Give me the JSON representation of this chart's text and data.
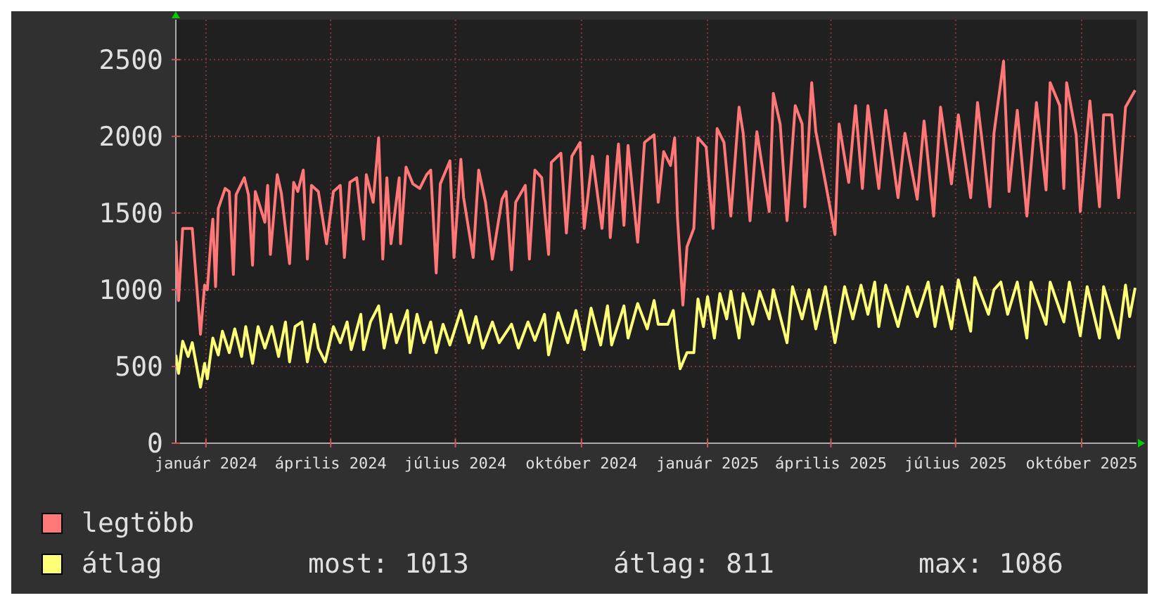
{
  "chart_data": {
    "type": "line",
    "xlim": [
      "2023-12-10",
      "2025-11-10"
    ],
    "xticks": [
      {
        "value": "2024-01-01",
        "label": "január 2024"
      },
      {
        "value": "2024-04-01",
        "label": "április 2024"
      },
      {
        "value": "2024-07-01",
        "label": "július 2024"
      },
      {
        "value": "2024-10-01",
        "label": "október 2024"
      },
      {
        "value": "2025-01-01",
        "label": "január 2025"
      },
      {
        "value": "2025-04-01",
        "label": "április 2025"
      },
      {
        "value": "2025-07-01",
        "label": "július 2025"
      },
      {
        "value": "2025-10-01",
        "label": "október 2025"
      }
    ],
    "ylim": [
      0,
      2760
    ],
    "yticks": [
      0,
      500,
      1000,
      1500,
      2000,
      2500
    ],
    "grid": true,
    "legend": "bottom",
    "series": [
      {
        "name": "legtöbb",
        "color": "#ff7777",
        "x": [
          "2023-12-10",
          "2023-12-12",
          "2023-12-15",
          "2023-12-22",
          "2023-12-28",
          "2023-12-31",
          "2024-01-02",
          "2024-01-05",
          "2024-01-06",
          "2024-01-08",
          "2024-01-10",
          "2024-01-15",
          "2024-01-18",
          "2024-01-21",
          "2024-01-23",
          "2024-01-29",
          "2024-02-01",
          "2024-02-04",
          "2024-02-06",
          "2024-02-13",
          "2024-02-15",
          "2024-02-17",
          "2024-02-22",
          "2024-02-25",
          "2024-03-02",
          "2024-03-05",
          "2024-03-08",
          "2024-03-12",
          "2024-03-15",
          "2024-03-18",
          "2024-03-23",
          "2024-03-29",
          "2024-04-03",
          "2024-04-08",
          "2024-04-11",
          "2024-04-15",
          "2024-04-20",
          "2024-04-25",
          "2024-04-27",
          "2024-05-02",
          "2024-05-06",
          "2024-05-09",
          "2024-05-12",
          "2024-05-15",
          "2024-05-21",
          "2024-05-22",
          "2024-05-26",
          "2024-05-31",
          "2024-06-05",
          "2024-06-10",
          "2024-06-13",
          "2024-06-17",
          "2024-06-20",
          "2024-06-27",
          "2024-06-30",
          "2024-07-05",
          "2024-07-07",
          "2024-07-14",
          "2024-07-18",
          "2024-07-23",
          "2024-07-28",
          "2024-08-04",
          "2024-08-07",
          "2024-08-11",
          "2024-08-14",
          "2024-08-21",
          "2024-08-24",
          "2024-08-28",
          "2024-09-02",
          "2024-09-07",
          "2024-09-09",
          "2024-09-16",
          "2024-09-20",
          "2024-09-24",
          "2024-09-30",
          "2024-10-03",
          "2024-10-09",
          "2024-10-16",
          "2024-10-20",
          "2024-10-22",
          "2024-10-28",
          "2024-11-01",
          "2024-11-04",
          "2024-11-11",
          "2024-11-16",
          "2024-11-23",
          "2024-11-26",
          "2024-11-30",
          "2024-12-05",
          "2024-12-08",
          "2024-12-10",
          "2024-12-14",
          "2024-12-17",
          "2024-12-22",
          "2024-12-25",
          "2024-12-31",
          "2025-01-05",
          "2025-01-08",
          "2025-01-13",
          "2025-01-18",
          "2025-01-24",
          "2025-01-27",
          "2025-02-01",
          "2025-02-06",
          "2025-02-15",
          "2025-02-18",
          "2025-02-23",
          "2025-02-28",
          "2025-03-06",
          "2025-03-11",
          "2025-03-13",
          "2025-03-18",
          "2025-03-21",
          "2025-03-28",
          "2025-04-04",
          "2025-04-07",
          "2025-04-14",
          "2025-04-19",
          "2025-04-24",
          "2025-04-28",
          "2025-05-06",
          "2025-05-11",
          "2025-05-20",
          "2025-05-25",
          "2025-06-03",
          "2025-06-08",
          "2025-06-15",
          "2025-06-20",
          "2025-06-28",
          "2025-07-03",
          "2025-07-12",
          "2025-07-17",
          "2025-07-26",
          "2025-07-29",
          "2025-08-05",
          "2025-08-09",
          "2025-08-15",
          "2025-08-22",
          "2025-08-29",
          "2025-09-05",
          "2025-09-08",
          "2025-09-15",
          "2025-09-18",
          "2025-09-20",
          "2025-09-27",
          "2025-09-30",
          "2025-10-07",
          "2025-10-14",
          "2025-10-17",
          "2025-10-23",
          "2025-10-28",
          "2025-11-02",
          "2025-11-09"
        ],
        "values": [
          1320,
          930,
          1400,
          1400,
          710,
          1030,
          1000,
          1370,
          1460,
          1020,
          1530,
          1660,
          1640,
          1100,
          1620,
          1730,
          1620,
          1160,
          1640,
          1440,
          1680,
          1230,
          1750,
          1630,
          1170,
          1700,
          1640,
          1780,
          1200,
          1680,
          1640,
          1300,
          1640,
          1680,
          1210,
          1700,
          1730,
          1330,
          1750,
          1570,
          1990,
          1200,
          1730,
          1300,
          1730,
          1300,
          1800,
          1690,
          1660,
          1750,
          1780,
          1110,
          1690,
          1840,
          1210,
          1850,
          1600,
          1210,
          1780,
          1570,
          1200,
          1590,
          1640,
          1130,
          1570,
          1680,
          1200,
          1780,
          1730,
          1230,
          1830,
          1890,
          1370,
          1870,
          1960,
          1400,
          1870,
          1400,
          1870,
          1340,
          1950,
          1420,
          1940,
          1310,
          1960,
          2010,
          1570,
          1900,
          1810,
          1990,
          1480,
          900,
          1280,
          1400,
          1990,
          1930,
          1400,
          2050,
          1960,
          1480,
          2190,
          2020,
          1450,
          2030,
          1510,
          2280,
          2080,
          1450,
          2200,
          2080,
          1540,
          2350,
          2030,
          1700,
          1360,
          2080,
          1700,
          2200,
          1660,
          2200,
          1660,
          2170,
          1600,
          2020,
          1590,
          2100,
          1480,
          2190,
          1690,
          2140,
          1600,
          2220,
          1540,
          2020,
          2490,
          1640,
          2170,
          1480,
          2220,
          1650,
          2350,
          2200,
          1660,
          2350,
          2010,
          1510,
          2230,
          1540,
          2140,
          2140,
          1600,
          2190,
          2300
        ]
      },
      {
        "name": "átlag",
        "color": "#ffff77",
        "x": [
          "2023-12-10",
          "2023-12-12",
          "2023-12-15",
          "2023-12-19",
          "2023-12-22",
          "2023-12-28",
          "2023-12-31",
          "2024-01-02",
          "2024-01-06",
          "2024-01-10",
          "2024-01-13",
          "2024-01-18",
          "2024-01-22",
          "2024-01-27",
          "2024-01-30",
          "2024-02-04",
          "2024-02-08",
          "2024-02-13",
          "2024-02-18",
          "2024-02-23",
          "2024-02-28",
          "2024-03-02",
          "2024-03-06",
          "2024-03-11",
          "2024-03-15",
          "2024-03-20",
          "2024-03-23",
          "2024-03-28",
          "2024-04-03",
          "2024-04-08",
          "2024-04-13",
          "2024-04-16",
          "2024-04-23",
          "2024-04-25",
          "2024-04-30",
          "2024-05-06",
          "2024-05-10",
          "2024-05-15",
          "2024-05-19",
          "2024-05-27",
          "2024-05-29",
          "2024-06-03",
          "2024-06-08",
          "2024-06-13",
          "2024-06-17",
          "2024-06-22",
          "2024-06-27",
          "2024-07-05",
          "2024-07-11",
          "2024-07-16",
          "2024-07-21",
          "2024-07-28",
          "2024-08-02",
          "2024-08-11",
          "2024-08-16",
          "2024-08-23",
          "2024-08-28",
          "2024-09-04",
          "2024-09-07",
          "2024-09-14",
          "2024-09-21",
          "2024-09-27",
          "2024-10-03",
          "2024-10-08",
          "2024-10-15",
          "2024-10-20",
          "2024-10-23",
          "2024-11-01",
          "2024-11-04",
          "2024-11-11",
          "2024-11-18",
          "2024-11-23",
          "2024-11-26",
          "2024-12-03",
          "2024-12-07",
          "2024-12-10",
          "2024-12-12",
          "2024-12-17",
          "2024-12-22",
          "2024-12-25",
          "2024-12-29",
          "2025-01-01",
          "2025-01-06",
          "2025-01-10",
          "2025-01-15",
          "2025-01-18",
          "2025-01-24",
          "2025-01-27",
          "2025-02-03",
          "2025-02-08",
          "2025-02-15",
          "2025-02-18",
          "2025-02-28",
          "2025-03-04",
          "2025-03-11",
          "2025-03-16",
          "2025-03-21",
          "2025-03-28",
          "2025-04-04",
          "2025-04-11",
          "2025-04-17",
          "2025-04-23",
          "2025-04-28",
          "2025-05-03",
          "2025-05-06",
          "2025-05-11",
          "2025-05-20",
          "2025-05-27",
          "2025-06-03",
          "2025-06-11",
          "2025-06-16",
          "2025-06-21",
          "2025-06-28",
          "2025-07-03",
          "2025-07-12",
          "2025-07-15",
          "2025-07-25",
          "2025-07-29",
          "2025-08-03",
          "2025-08-08",
          "2025-08-15",
          "2025-08-22",
          "2025-08-25",
          "2025-09-05",
          "2025-09-08",
          "2025-09-18",
          "2025-09-22",
          "2025-09-30",
          "2025-10-05",
          "2025-10-14",
          "2025-10-17",
          "2025-10-28",
          "2025-11-02",
          "2025-11-05",
          "2025-11-09"
        ],
        "values": [
          575,
          455,
          665,
          565,
          655,
          365,
          520,
          420,
          685,
          575,
          730,
          590,
          745,
          565,
          760,
          520,
          760,
          620,
          760,
          565,
          790,
          530,
          760,
          790,
          530,
          775,
          620,
          530,
          760,
          655,
          790,
          610,
          840,
          610,
          790,
          895,
          620,
          840,
          655,
          865,
          590,
          840,
          655,
          790,
          590,
          775,
          640,
          865,
          655,
          825,
          620,
          790,
          655,
          775,
          620,
          790,
          670,
          840,
          575,
          850,
          655,
          865,
          610,
          880,
          640,
          895,
          640,
          895,
          685,
          910,
          745,
          930,
          775,
          775,
          865,
          620,
          485,
          590,
          590,
          940,
          760,
          955,
          685,
          975,
          810,
          990,
          685,
          975,
          775,
          990,
          810,
          1000,
          655,
          1020,
          810,
          1000,
          745,
          1020,
          655,
          1020,
          810,
          1030,
          840,
          1050,
          760,
          1030,
          760,
          1020,
          825,
          1050,
          760,
          1020,
          745,
          1065,
          730,
          1080,
          840,
          1000,
          1050,
          840,
          1050,
          685,
          1050,
          775,
          1050,
          790,
          1050,
          700,
          1020,
          685,
          1020,
          685,
          1030,
          825,
          1013
        ]
      }
    ],
    "annotations": [
      "most: 1013",
      "átlag: 811",
      "max: 1086"
    ]
  }
}
